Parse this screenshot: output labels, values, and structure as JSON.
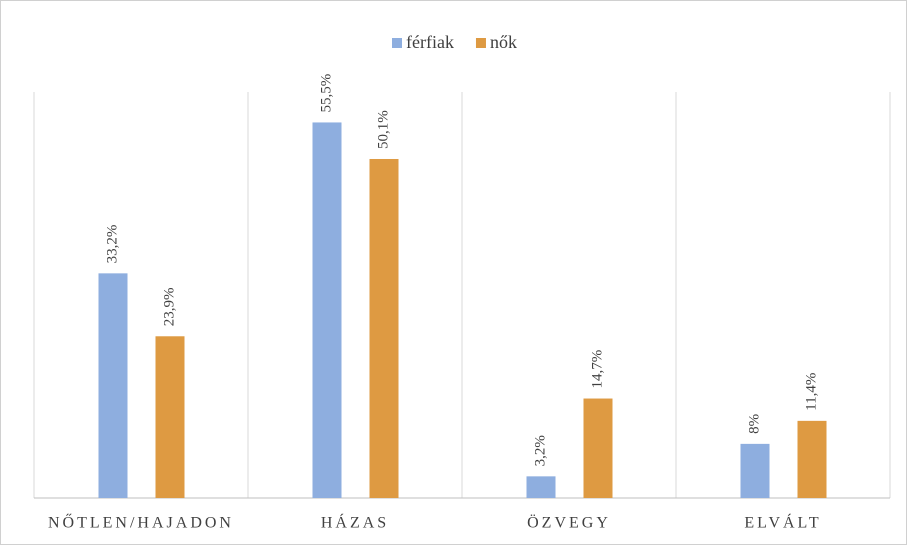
{
  "chart_data": {
    "type": "bar",
    "categories": [
      "NŐTLEN/HAJADON",
      "HÁZAS",
      "ÖZVEGY",
      "ELVÁLT"
    ],
    "series": [
      {
        "name": "férfiak",
        "color": "#8eaedf",
        "values": [
          33.2,
          55.5,
          3.2,
          8
        ],
        "value_labels": [
          "33,2%",
          "55,5%",
          "3,2%",
          "8%"
        ]
      },
      {
        "name": "nők",
        "color": "#de9a42",
        "values": [
          23.9,
          50.1,
          14.7,
          11.4
        ],
        "value_labels": [
          "23,9%",
          "50,1%",
          "14,7%",
          "11,4%"
        ]
      }
    ],
    "ylim": [
      0,
      60
    ],
    "legend": "top"
  }
}
